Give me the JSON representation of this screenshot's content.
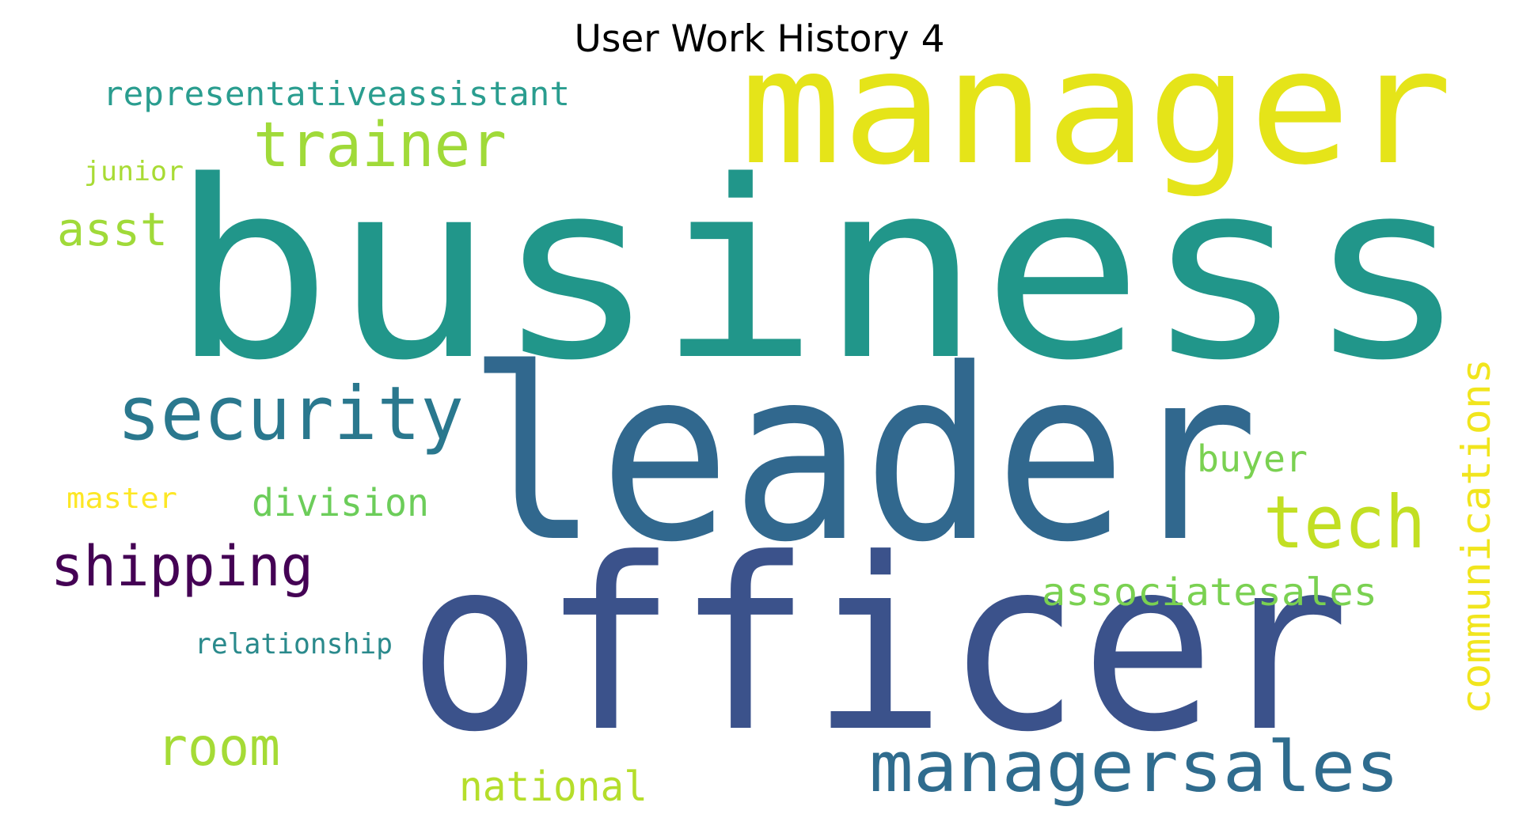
{
  "title": "User Work History 4",
  "words": [
    {
      "text": "business",
      "color": "#21968a"
    },
    {
      "text": "manager",
      "color": "#e5e419"
    },
    {
      "text": "leader",
      "color": "#31688e"
    },
    {
      "text": "officer",
      "color": "#3b528b"
    },
    {
      "text": "trainer",
      "color": "#a0da39"
    },
    {
      "text": "representativeassistant",
      "color": "#2a9d8f"
    },
    {
      "text": "junior",
      "color": "#a8db34"
    },
    {
      "text": "asst",
      "color": "#a0da39"
    },
    {
      "text": "security",
      "color": "#2a788e"
    },
    {
      "text": "master",
      "color": "#fde725"
    },
    {
      "text": "division",
      "color": "#6ccd5a"
    },
    {
      "text": "shipping",
      "color": "#440154"
    },
    {
      "text": "relationship",
      "color": "#2a8a8c"
    },
    {
      "text": "room",
      "color": "#a5db36"
    },
    {
      "text": "national",
      "color": "#b5de2b"
    },
    {
      "text": "managersales",
      "color": "#2f6c8e"
    },
    {
      "text": "associatesales",
      "color": "#7ad151"
    },
    {
      "text": "tech",
      "color": "#c2df23"
    },
    {
      "text": "buyer",
      "color": "#7ad151"
    },
    {
      "text": "communications",
      "color": "#f1e51d"
    }
  ]
}
